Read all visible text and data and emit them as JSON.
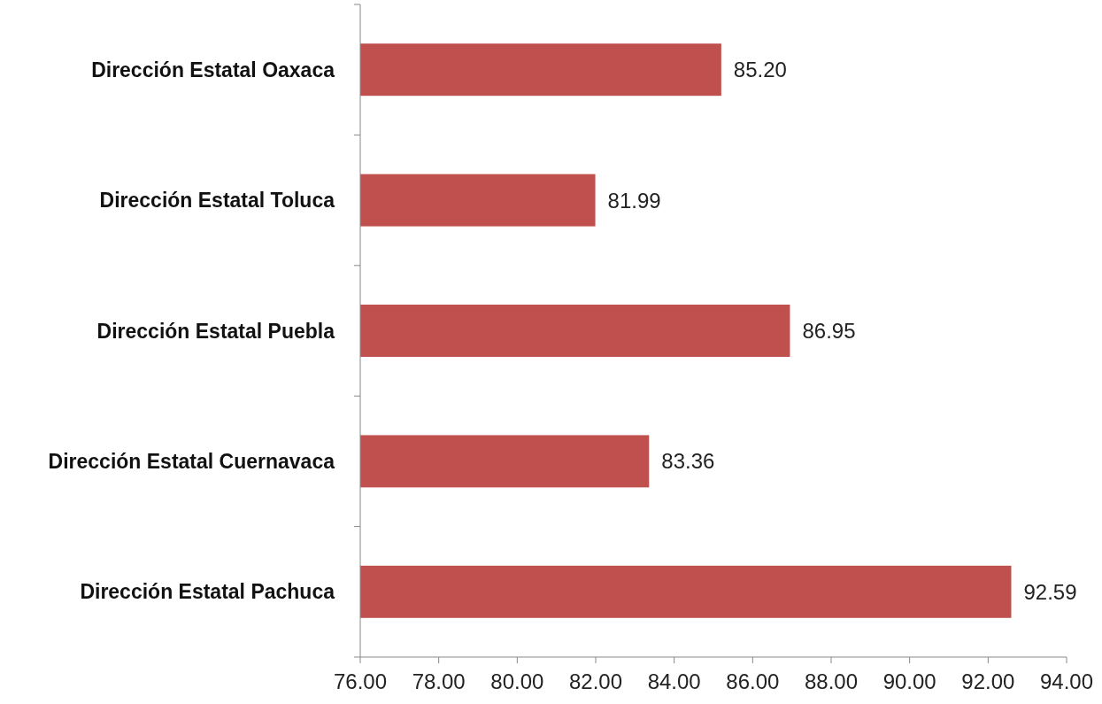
{
  "chart_data": {
    "type": "bar",
    "orientation": "horizontal",
    "categories": [
      "Dirección Estatal Oaxaca",
      "Dirección Estatal Toluca",
      "Dirección Estatal Puebla",
      "Dirección Estatal Cuernavaca",
      "Dirección Estatal Pachuca"
    ],
    "values": [
      85.2,
      81.99,
      86.95,
      83.36,
      92.59
    ],
    "value_labels": [
      "85.20",
      "81.99",
      "86.95",
      "83.36",
      "92.59"
    ],
    "color": "#c0504d",
    "xlim": [
      76,
      94
    ],
    "xticks": [
      {
        "value": 76,
        "label": "76.00"
      },
      {
        "value": 78,
        "label": "78.00"
      },
      {
        "value": 80,
        "label": "80.00"
      },
      {
        "value": 82,
        "label": "82.00"
      },
      {
        "value": 84,
        "label": "84.00"
      },
      {
        "value": 86,
        "label": "86.00"
      },
      {
        "value": 88,
        "label": "88.00"
      },
      {
        "value": 90,
        "label": "90.00"
      },
      {
        "value": 92,
        "label": "92.00"
      },
      {
        "value": 94,
        "label": "94.00"
      }
    ],
    "grid": false
  }
}
